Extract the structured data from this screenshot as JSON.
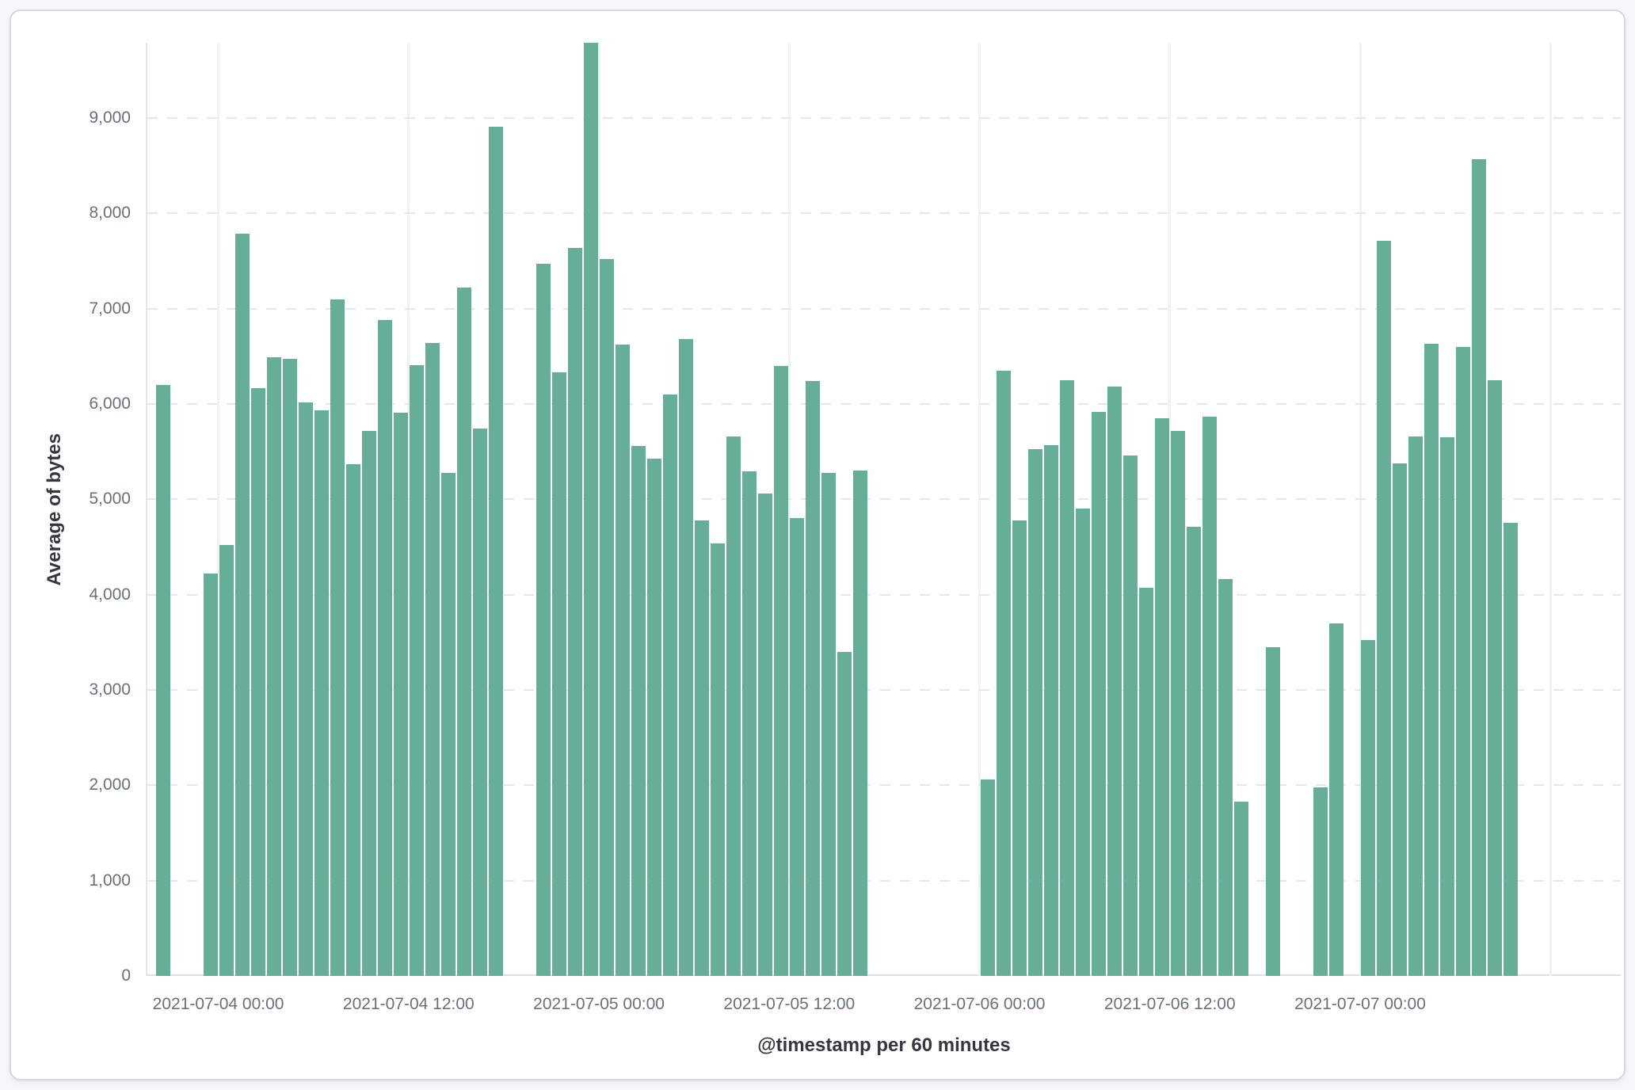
{
  "panel": {
    "background": "#FFFFFF",
    "border_color": "#D3DAE6",
    "page_background": "#F5F7FA"
  },
  "chart_data": {
    "type": "bar",
    "title": "",
    "xlabel": "@timestamp per 60 minutes",
    "ylabel": "Average of bytes",
    "legend": "none",
    "grid": "on",
    "bar_color": "#66AE97",
    "grid_dash_color": "#E4E7EC",
    "grid_vertical_color": "#EFF1F5",
    "axis_line_color": "#E3E6EB",
    "tick_label_color": "#69707D",
    "axis_title_color": "#343741",
    "ylim": [
      0,
      9790
    ],
    "y_tick_interval": 1000,
    "y_ticks": [
      {
        "value": 0,
        "label": "0"
      },
      {
        "value": 1000,
        "label": "1,000"
      },
      {
        "value": 2000,
        "label": "2,000"
      },
      {
        "value": 3000,
        "label": "3,000"
      },
      {
        "value": 4000,
        "label": "4,000"
      },
      {
        "value": 5000,
        "label": "5,000"
      },
      {
        "value": 6000,
        "label": "6,000"
      },
      {
        "value": 7000,
        "label": "7,000"
      },
      {
        "value": 8000,
        "label": "8,000"
      },
      {
        "value": 9000,
        "label": "9,000"
      }
    ],
    "x_ticks": [
      {
        "slot": 4,
        "label": "2021-07-04 00:00"
      },
      {
        "slot": 16,
        "label": "2021-07-04 12:00"
      },
      {
        "slot": 28,
        "label": "2021-07-05 00:00"
      },
      {
        "slot": 40,
        "label": "2021-07-05 12:00"
      },
      {
        "slot": 52,
        "label": "2021-07-06 00:00"
      },
      {
        "slot": 64,
        "label": "2021-07-06 12:00"
      },
      {
        "slot": 76,
        "label": "2021-07-07 00:00"
      }
    ],
    "gridline_slots": [
      4,
      16,
      28,
      40,
      52,
      64,
      76,
      88
    ],
    "slots_total": 92,
    "bucket_interval_minutes": 60,
    "start_time": "2021-07-03 20:00",
    "timestamps": [
      "2021-07-03 20:00",
      "2021-07-03 21:00",
      "2021-07-03 22:00",
      "2021-07-03 23:00",
      "2021-07-04 00:00",
      "2021-07-04 01:00",
      "2021-07-04 02:00",
      "2021-07-04 03:00",
      "2021-07-04 04:00",
      "2021-07-04 05:00",
      "2021-07-04 06:00",
      "2021-07-04 07:00",
      "2021-07-04 08:00",
      "2021-07-04 09:00",
      "2021-07-04 10:00",
      "2021-07-04 11:00",
      "2021-07-04 12:00",
      "2021-07-04 13:00",
      "2021-07-04 14:00",
      "2021-07-04 15:00",
      "2021-07-04 16:00",
      "2021-07-04 17:00",
      "2021-07-04 18:00",
      "2021-07-04 19:00",
      "2021-07-04 20:00",
      "2021-07-04 21:00",
      "2021-07-04 22:00",
      "2021-07-04 23:00",
      "2021-07-05 00:00",
      "2021-07-05 01:00",
      "2021-07-05 02:00",
      "2021-07-05 03:00",
      "2021-07-05 04:00",
      "2021-07-05 05:00",
      "2021-07-05 06:00",
      "2021-07-05 07:00",
      "2021-07-05 08:00",
      "2021-07-05 09:00",
      "2021-07-05 10:00",
      "2021-07-05 11:00",
      "2021-07-05 12:00",
      "2021-07-05 13:00",
      "2021-07-05 14:00",
      "2021-07-05 15:00",
      "2021-07-05 16:00",
      "2021-07-05 17:00",
      "2021-07-05 18:00",
      "2021-07-05 19:00",
      "2021-07-05 20:00",
      "2021-07-05 21:00",
      "2021-07-05 22:00",
      "2021-07-05 23:00",
      "2021-07-06 00:00",
      "2021-07-06 01:00",
      "2021-07-06 02:00",
      "2021-07-06 03:00",
      "2021-07-06 04:00",
      "2021-07-06 05:00",
      "2021-07-06 06:00",
      "2021-07-06 07:00",
      "2021-07-06 08:00",
      "2021-07-06 09:00",
      "2021-07-06 10:00",
      "2021-07-06 11:00",
      "2021-07-06 12:00",
      "2021-07-06 13:00",
      "2021-07-06 14:00",
      "2021-07-06 15:00",
      "2021-07-06 16:00",
      "2021-07-06 17:00",
      "2021-07-06 18:00",
      "2021-07-06 19:00",
      "2021-07-06 20:00",
      "2021-07-06 21:00",
      "2021-07-06 22:00",
      "2021-07-06 23:00",
      "2021-07-07 00:00",
      "2021-07-07 01:00",
      "2021-07-07 02:00",
      "2021-07-07 03:00",
      "2021-07-07 04:00",
      "2021-07-07 05:00",
      "2021-07-07 06:00",
      "2021-07-07 07:00",
      "2021-07-07 08:00",
      "2021-07-07 09:00"
    ],
    "values": [
      6200,
      null,
      null,
      4220,
      4520,
      7790,
      6170,
      6490,
      6470,
      6020,
      5930,
      7100,
      5370,
      5720,
      6880,
      5910,
      6410,
      6640,
      5280,
      7220,
      5740,
      8910,
      null,
      null,
      7470,
      6330,
      7640,
      9790,
      7520,
      6620,
      5560,
      5430,
      6100,
      6680,
      4780,
      4540,
      5660,
      5290,
      5060,
      6400,
      4800,
      6240,
      5280,
      3400,
      5300,
      null,
      null,
      null,
      null,
      null,
      null,
      null,
      2060,
      6350,
      4780,
      5530,
      5570,
      6250,
      4900,
      5920,
      6180,
      5460,
      4070,
      5850,
      5720,
      4710,
      5870,
      4160,
      1830,
      null,
      3450,
      null,
      null,
      1980,
      3700,
      null,
      3520,
      7710,
      5380,
      5660,
      6630,
      5650,
      6600,
      8570,
      6250,
      4750
    ]
  }
}
